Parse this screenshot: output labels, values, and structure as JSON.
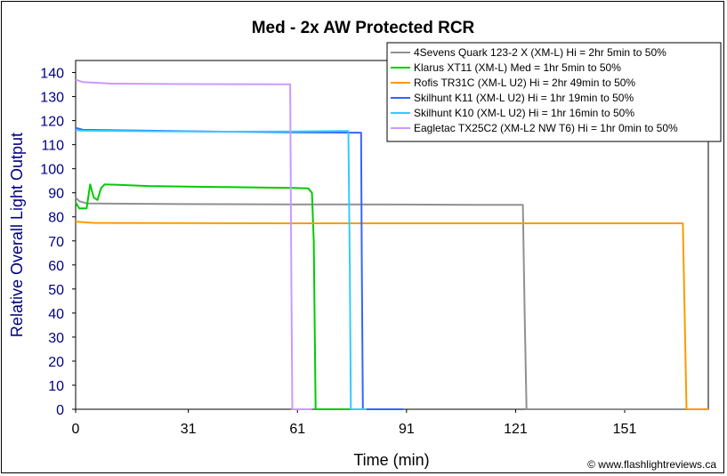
{
  "chart_data": {
    "type": "line",
    "title": "Med - 2x AW Protected RCR",
    "xlabel": "Time (min)",
    "ylabel": "Relative Overall Light Output",
    "xlim": [
      0,
      174
    ],
    "ylim": [
      0,
      145
    ],
    "xticks": [
      0,
      31,
      61,
      91,
      121,
      151
    ],
    "yticks": [
      0,
      10,
      20,
      30,
      40,
      50,
      60,
      70,
      80,
      90,
      100,
      110,
      120,
      130,
      140
    ],
    "grid": false,
    "legend_position": "top-right",
    "credit": "© www.flashlightreviews.ca",
    "series": [
      {
        "name": "4Sevens Quark 123-2 X (XM-L) Hi = 2hr 5min to 50%",
        "color": "#909090",
        "points": [
          [
            0,
            88
          ],
          [
            1,
            86.5
          ],
          [
            3,
            85.6
          ],
          [
            30,
            85.3
          ],
          [
            60,
            85.2
          ],
          [
            90,
            85.1
          ],
          [
            110,
            85.0
          ],
          [
            123,
            85.0
          ],
          [
            123.5,
            40
          ],
          [
            124,
            0
          ],
          [
            174,
            0
          ]
        ]
      },
      {
        "name": "Klarus XT11 (XM-L) Med = 1hr 5min to 50%",
        "color": "#00cc00",
        "points": [
          [
            0,
            86
          ],
          [
            1,
            83.5
          ],
          [
            3,
            83.5
          ],
          [
            4,
            93.5
          ],
          [
            5,
            88
          ],
          [
            6,
            87
          ],
          [
            7,
            92
          ],
          [
            8,
            93.5
          ],
          [
            20,
            92.8
          ],
          [
            40,
            92.4
          ],
          [
            60,
            92.0
          ],
          [
            64,
            91.8
          ],
          [
            65,
            90
          ],
          [
            65.5,
            70
          ],
          [
            66,
            0
          ],
          [
            90,
            0
          ]
        ]
      },
      {
        "name": "Rofis TR31C (XM-L U2) Hi = 2hr 49min to 50%",
        "color": "#ff9900",
        "points": [
          [
            0,
            78
          ],
          [
            5,
            77.5
          ],
          [
            30,
            77.4
          ],
          [
            60,
            77.3
          ],
          [
            90,
            77.3
          ],
          [
            120,
            77.3
          ],
          [
            150,
            77.3
          ],
          [
            167,
            77.3
          ],
          [
            167.5,
            40
          ],
          [
            168,
            0
          ],
          [
            174,
            0
          ]
        ]
      },
      {
        "name": "Skilhunt K11 (XM-L U2) Hi = 1hr 19min to 50%",
        "color": "#3366ff",
        "points": [
          [
            0,
            117
          ],
          [
            2,
            116.2
          ],
          [
            20,
            115.8
          ],
          [
            40,
            115.4
          ],
          [
            60,
            115.1
          ],
          [
            77,
            115.0
          ],
          [
            78.5,
            115
          ],
          [
            78.7,
            60
          ],
          [
            79,
            0
          ],
          [
            90,
            0
          ]
        ]
      },
      {
        "name": "Skilhunt K10 (XM-L U2) Hi = 1hr 16min to 50%",
        "color": "#33ccff",
        "points": [
          [
            0,
            116
          ],
          [
            2,
            115.8
          ],
          [
            20,
            115.6
          ],
          [
            40,
            115.4
          ],
          [
            60,
            115.5
          ],
          [
            75,
            115.7
          ],
          [
            75.4,
            60
          ],
          [
            75.7,
            0
          ],
          [
            80,
            0
          ]
        ]
      },
      {
        "name": "Eagletac TX25C2 (XM-L2 NW T6) Hi = 1hr 0min to 50%",
        "color": "#cc99ff",
        "points": [
          [
            0,
            137
          ],
          [
            2,
            136
          ],
          [
            10,
            135.4
          ],
          [
            30,
            135.2
          ],
          [
            59,
            135.1
          ],
          [
            59.3,
            60
          ],
          [
            59.6,
            0
          ],
          [
            65,
            0
          ]
        ]
      }
    ]
  }
}
